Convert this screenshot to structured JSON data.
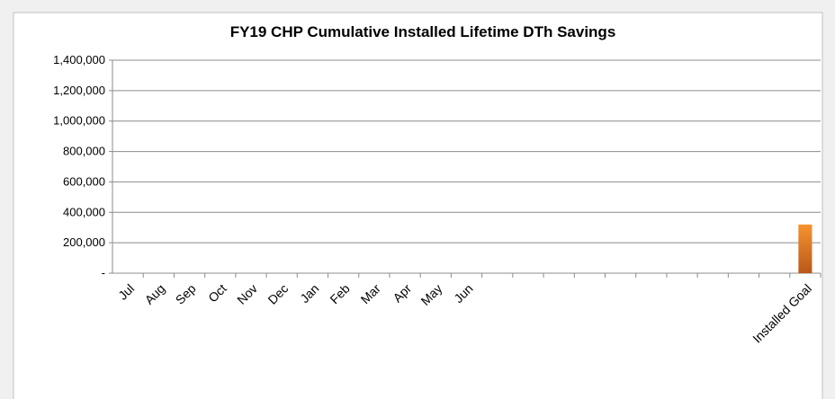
{
  "chart_data": {
    "type": "bar",
    "title": "FY19 CHP Cumulative Installed Lifetime DTh Savings",
    "categories": [
      "Jul",
      "Aug",
      "Sep",
      "Oct",
      "Nov",
      "Dec",
      "Jan",
      "Feb",
      "Mar",
      "Apr",
      "May",
      "Jun",
      null,
      null,
      null,
      null,
      null,
      null,
      null,
      null,
      null,
      null,
      "Installed Goal"
    ],
    "values": [
      null,
      null,
      null,
      null,
      null,
      null,
      null,
      null,
      null,
      null,
      null,
      null,
      null,
      null,
      null,
      null,
      null,
      null,
      null,
      null,
      null,
      null,
      320000
    ],
    "color": "#e07b22",
    "ylim": [
      0,
      1400000
    ],
    "yticks": [
      {
        "value": 0,
        "label": "-"
      },
      {
        "value": 200000,
        "label": "200,000"
      },
      {
        "value": 400000,
        "label": "400,000"
      },
      {
        "value": 600000,
        "label": "600,000"
      },
      {
        "value": 800000,
        "label": "800,000"
      },
      {
        "value": 1000000,
        "label": "1,000,000"
      },
      {
        "value": 1200000,
        "label": "1,200,000"
      },
      {
        "value": 1400000,
        "label": "1,400,000"
      }
    ],
    "grid": true
  }
}
